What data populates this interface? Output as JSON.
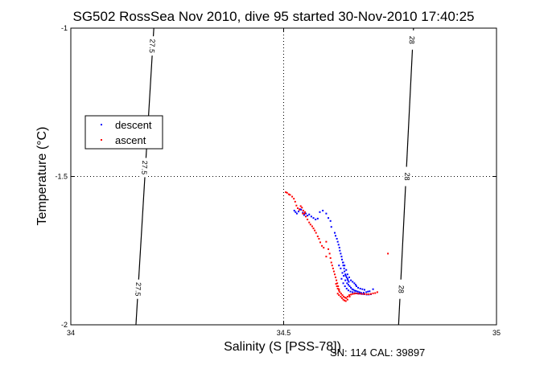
{
  "chart_data": {
    "type": "scatter",
    "title": "SG502 RossSea Nov 2010, dive 95 started 30-Nov-2010 17:40:25",
    "xlabel": "Salinity (S [PSS-78])",
    "ylabel": "Temperature (°C)",
    "xlim": [
      34,
      35
    ],
    "ylim": [
      -2,
      -1
    ],
    "x_ticks": [
      "34",
      "34.5",
      "35"
    ],
    "y_ticks": [
      "-1",
      "-1.5",
      "-2"
    ],
    "grid": "dotted at 34.5 and -1.5",
    "legend": {
      "placement": "left",
      "entries": [
        "descent",
        "ascent"
      ]
    },
    "footer": "SN: 114  CAL: 39897",
    "colors": {
      "descent": "#0000ff",
      "ascent": "#ff0000",
      "contour": "#000000"
    },
    "contours": [
      {
        "label": "27.5",
        "points": [
          [
            34.195,
            -1.0
          ],
          [
            34.153,
            -2.0
          ]
        ],
        "label_positions": [
          [
            34.19,
            -1.06
          ],
          [
            34.172,
            -1.47
          ],
          [
            34.157,
            -1.88
          ]
        ]
      },
      {
        "label": "28",
        "points": [
          [
            34.805,
            -1.0
          ],
          [
            34.77,
            -2.0
          ]
        ],
        "label_positions": [
          [
            34.8,
            -1.04
          ],
          [
            34.789,
            -1.5
          ],
          [
            34.775,
            -1.88
          ]
        ]
      }
    ],
    "series": [
      {
        "name": "descent",
        "points": [
          [
            34.525,
            -1.615
          ],
          [
            34.528,
            -1.62
          ],
          [
            34.531,
            -1.625
          ],
          [
            34.535,
            -1.618
          ],
          [
            34.538,
            -1.61
          ],
          [
            34.541,
            -1.612
          ],
          [
            34.545,
            -1.622
          ],
          [
            34.548,
            -1.63
          ],
          [
            34.552,
            -1.625
          ],
          [
            34.556,
            -1.632
          ],
          [
            34.56,
            -1.628
          ],
          [
            34.565,
            -1.635
          ],
          [
            34.57,
            -1.64
          ],
          [
            34.575,
            -1.645
          ],
          [
            34.58,
            -1.642
          ],
          [
            34.585,
            -1.62
          ],
          [
            34.592,
            -1.615
          ],
          [
            34.6,
            -1.625
          ],
          [
            34.605,
            -1.64
          ],
          [
            34.61,
            -1.65
          ],
          [
            34.612,
            -1.67
          ],
          [
            34.62,
            -1.69
          ],
          [
            34.622,
            -1.7
          ],
          [
            34.625,
            -1.71
          ],
          [
            34.627,
            -1.72
          ],
          [
            34.629,
            -1.73
          ],
          [
            34.631,
            -1.74
          ],
          [
            34.632,
            -1.75
          ],
          [
            34.634,
            -1.76
          ],
          [
            34.636,
            -1.77
          ],
          [
            34.637,
            -1.78
          ],
          [
            34.639,
            -1.79
          ],
          [
            34.64,
            -1.8
          ],
          [
            34.642,
            -1.81
          ],
          [
            34.643,
            -1.82
          ],
          [
            34.645,
            -1.83
          ],
          [
            34.646,
            -1.835
          ],
          [
            34.648,
            -1.84
          ],
          [
            34.65,
            -1.845
          ],
          [
            34.651,
            -1.85
          ],
          [
            34.653,
            -1.855
          ],
          [
            34.63,
            -1.8
          ],
          [
            34.634,
            -1.81
          ],
          [
            34.638,
            -1.825
          ],
          [
            34.641,
            -1.835
          ],
          [
            34.645,
            -1.85
          ],
          [
            34.649,
            -1.86
          ],
          [
            34.652,
            -1.865
          ],
          [
            34.655,
            -1.87
          ],
          [
            34.658,
            -1.875
          ],
          [
            34.661,
            -1.88
          ],
          [
            34.664,
            -1.882
          ],
          [
            34.667,
            -1.885
          ],
          [
            34.67,
            -1.886
          ],
          [
            34.674,
            -1.888
          ],
          [
            34.678,
            -1.89
          ],
          [
            34.682,
            -1.892
          ],
          [
            34.688,
            -1.892
          ],
          [
            34.694,
            -1.89
          ],
          [
            34.698,
            -1.888
          ],
          [
            34.702,
            -1.887
          ],
          [
            34.636,
            -1.845
          ],
          [
            34.64,
            -1.86
          ],
          [
            34.644,
            -1.87
          ],
          [
            34.648,
            -1.878
          ],
          [
            34.652,
            -1.884
          ],
          [
            34.657,
            -1.888
          ],
          [
            34.662,
            -1.89
          ],
          [
            34.667,
            -1.893
          ],
          [
            34.672,
            -1.894
          ],
          [
            34.677,
            -1.895
          ],
          [
            34.683,
            -1.896
          ],
          [
            34.689,
            -1.897
          ],
          [
            34.695,
            -1.898
          ],
          [
            34.7,
            -1.898
          ],
          [
            34.705,
            -1.897
          ],
          [
            34.64,
            -1.79
          ],
          [
            34.643,
            -1.8
          ],
          [
            34.647,
            -1.815
          ],
          [
            34.65,
            -1.83
          ],
          [
            34.654,
            -1.84
          ],
          [
            34.658,
            -1.85
          ],
          [
            34.662,
            -1.855
          ],
          [
            34.666,
            -1.86
          ],
          [
            34.669,
            -1.865
          ],
          [
            34.671,
            -1.87
          ],
          [
            34.675,
            -1.875
          ],
          [
            34.68,
            -1.878
          ],
          [
            34.685,
            -1.88
          ],
          [
            34.69,
            -1.882
          ],
          [
            34.71,
            -1.88
          ]
        ]
      },
      {
        "name": "ascent",
        "points": [
          [
            34.508,
            -1.555
          ],
          [
            34.515,
            -1.562
          ],
          [
            34.52,
            -1.568
          ],
          [
            34.524,
            -1.575
          ],
          [
            34.527,
            -1.585
          ],
          [
            34.53,
            -1.598
          ],
          [
            34.533,
            -1.607
          ],
          [
            34.537,
            -1.612
          ],
          [
            34.54,
            -1.6
          ],
          [
            34.543,
            -1.605
          ],
          [
            34.546,
            -1.615
          ],
          [
            34.549,
            -1.625
          ],
          [
            34.552,
            -1.635
          ],
          [
            34.556,
            -1.645
          ],
          [
            34.56,
            -1.655
          ],
          [
            34.563,
            -1.662
          ],
          [
            34.567,
            -1.668
          ],
          [
            34.57,
            -1.675
          ],
          [
            34.573,
            -1.682
          ],
          [
            34.576,
            -1.69
          ],
          [
            34.58,
            -1.702
          ],
          [
            34.583,
            -1.71
          ],
          [
            34.586,
            -1.722
          ],
          [
            34.59,
            -1.734
          ],
          [
            34.594,
            -1.74
          ],
          [
            34.6,
            -1.72
          ],
          [
            34.605,
            -1.745
          ],
          [
            34.608,
            -1.76
          ],
          [
            34.61,
            -1.775
          ],
          [
            34.612,
            -1.79
          ],
          [
            34.614,
            -1.8
          ],
          [
            34.616,
            -1.81
          ],
          [
            34.618,
            -1.82
          ],
          [
            34.62,
            -1.83
          ],
          [
            34.622,
            -1.84
          ],
          [
            34.624,
            -1.85
          ],
          [
            34.626,
            -1.86
          ],
          [
            34.628,
            -1.87
          ],
          [
            34.63,
            -1.88
          ],
          [
            34.632,
            -1.89
          ],
          [
            34.635,
            -1.895
          ],
          [
            34.638,
            -1.9
          ],
          [
            34.641,
            -1.905
          ],
          [
            34.644,
            -1.908
          ],
          [
            34.647,
            -1.91
          ],
          [
            34.65,
            -1.905
          ],
          [
            34.654,
            -1.9
          ],
          [
            34.658,
            -1.898
          ],
          [
            34.662,
            -1.896
          ],
          [
            34.666,
            -1.895
          ],
          [
            34.67,
            -1.894
          ],
          [
            34.675,
            -1.895
          ],
          [
            34.68,
            -1.895
          ],
          [
            34.685,
            -1.896
          ],
          [
            34.69,
            -1.896
          ],
          [
            34.695,
            -1.897
          ],
          [
            34.7,
            -1.897
          ],
          [
            34.705,
            -1.896
          ],
          [
            34.71,
            -1.894
          ],
          [
            34.715,
            -1.893
          ],
          [
            34.72,
            -1.89
          ],
          [
            34.63,
            -1.885
          ],
          [
            34.627,
            -1.878
          ],
          [
            34.625,
            -1.87
          ],
          [
            34.623,
            -1.862
          ],
          [
            34.627,
            -1.895
          ],
          [
            34.63,
            -1.9
          ],
          [
            34.634,
            -1.905
          ],
          [
            34.637,
            -1.91
          ],
          [
            34.64,
            -1.915
          ],
          [
            34.643,
            -1.918
          ],
          [
            34.646,
            -1.92
          ],
          [
            34.65,
            -1.915
          ],
          [
            34.655,
            -1.905
          ],
          [
            34.545,
            -1.625
          ],
          [
            34.55,
            -1.62
          ],
          [
            34.505,
            -1.553
          ],
          [
            34.512,
            -1.56
          ],
          [
            34.745,
            -1.76
          ],
          [
            34.6,
            -1.77
          ]
        ]
      }
    ]
  }
}
